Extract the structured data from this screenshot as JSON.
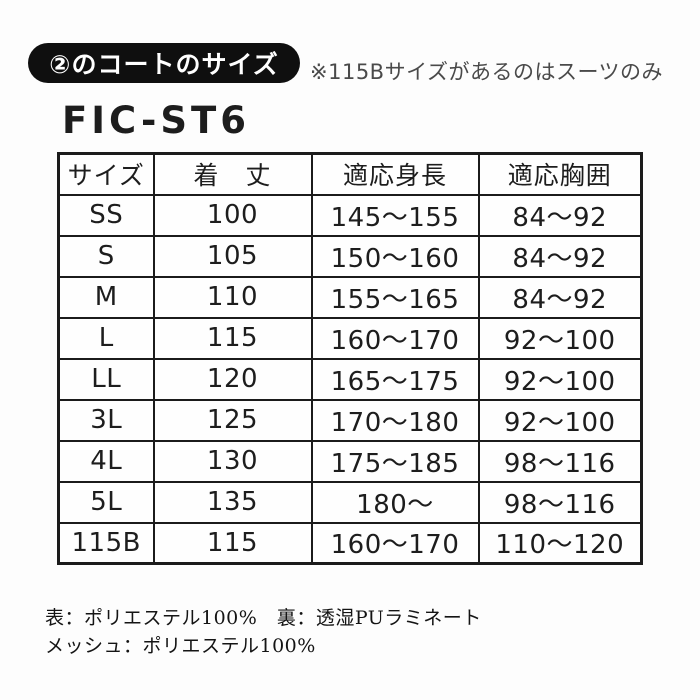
{
  "header": {
    "badge": "②のコートのサイズ",
    "note": "※115Bサイズがあるのはスーツのみ"
  },
  "product_code": "FIC-ST6",
  "table": {
    "headers": [
      "サイズ",
      "着　丈",
      "適応身長",
      "適応胸囲"
    ],
    "rows": [
      [
        "SS",
        "100",
        "145〜155",
        "84〜92"
      ],
      [
        "S",
        "105",
        "150〜160",
        "84〜92"
      ],
      [
        "M",
        "110",
        "155〜165",
        "84〜92"
      ],
      [
        "L",
        "115",
        "160〜170",
        "92〜100"
      ],
      [
        "LL",
        "120",
        "165〜175",
        "92〜100"
      ],
      [
        "3L",
        "125",
        "170〜180",
        "92〜100"
      ],
      [
        "4L",
        "130",
        "175〜185",
        "98〜116"
      ],
      [
        "5L",
        "135",
        "180〜",
        "98〜116"
      ],
      [
        "115B",
        "115",
        "160〜170",
        "110〜120"
      ]
    ]
  },
  "footer": {
    "line1": "表：ポリエステル100%　裏：透湿PUラミネート",
    "line2": "メッシュ：ポリエステル100%"
  },
  "colors": {
    "background": "#fdfdfd",
    "badge_bg": "#0f0f0f",
    "badge_text": "#ffffff",
    "note_text": "#4a4a4a",
    "table_border": "#1b1b1b",
    "text": "#1d1d1d"
  }
}
